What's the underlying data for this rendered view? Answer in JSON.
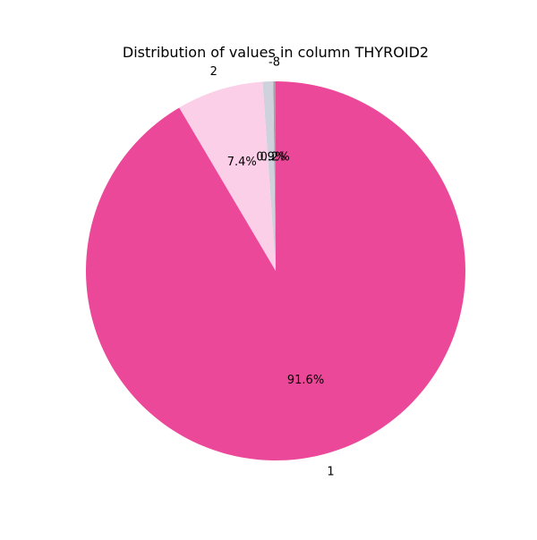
{
  "chart_data": {
    "type": "pie",
    "title": "Distribution of values in column THYROID2",
    "slices": [
      {
        "label": "-8",
        "value": 0.2,
        "pct_label": "0.2%",
        "color": "#a2a2a2"
      },
      {
        "label": "",
        "value": 0.9,
        "pct_label": "0.9%",
        "color": "#cfd1dd"
      },
      {
        "label": "2",
        "value": 7.4,
        "pct_label": "7.4%",
        "color": "#fbcfe8"
      },
      {
        "label": "1",
        "value": 91.6,
        "pct_label": "91.6%",
        "color": "#ec4899"
      }
    ],
    "start_angle_deg": 90,
    "direction": "counterclockwise"
  }
}
